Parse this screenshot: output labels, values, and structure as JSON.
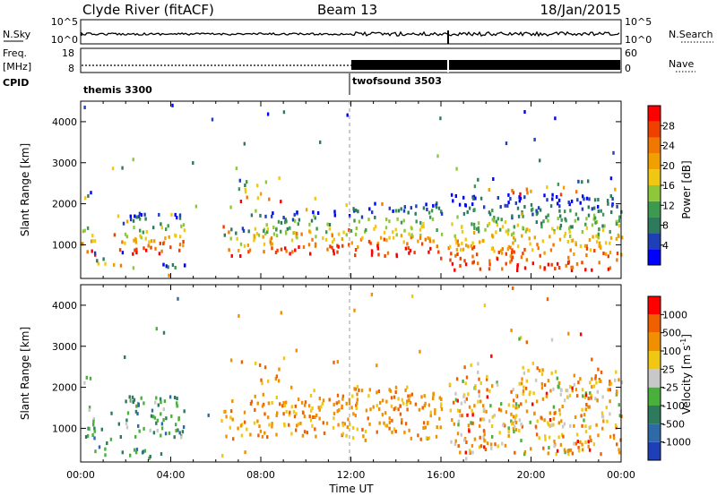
{
  "header": {
    "station": "Clyde River (fitACF)",
    "beam": "Beam 13",
    "date": "18/Jan/2015"
  },
  "strips": {
    "nsky_label": "N.Sky",
    "nsearch_label": "N.Search",
    "nsky_ticks": [
      "10^5",
      "10^0"
    ],
    "nsearch_ticks": [
      "10^5",
      "10^0"
    ],
    "freq_label": "Freq.",
    "freq_unit": "[MHz]",
    "freq_ticks": [
      "18",
      "8"
    ],
    "nave_label": "Nave",
    "nave_ticks": [
      "60",
      "0"
    ],
    "cpid_label": "CPID",
    "cpid_segments": [
      {
        "name": "themis 3300",
        "start_hour": 0
      },
      {
        "name": "twofsound 3503",
        "start_hour": 12.0
      }
    ]
  },
  "chart_data": [
    {
      "type": "heatmap",
      "panel": "power",
      "ylabel": "Slant Range [km]",
      "xlabel": "",
      "x_range_hours": [
        0,
        24
      ],
      "y_range_km": [
        180,
        4500
      ],
      "x_ticks": [
        "00:00",
        "04:00",
        "08:00",
        "12:00",
        "16:00",
        "20:00",
        "00:00"
      ],
      "y_ticks": [
        1000,
        2000,
        3000,
        4000
      ],
      "colorbar": {
        "label": "Power [dB]",
        "ticks": [
          28,
          24,
          20,
          16,
          12,
          8,
          4
        ],
        "colors": [
          "#0000ff",
          "#1f3fb8",
          "#2e7a5c",
          "#3c9a50",
          "#8ec83a",
          "#f0c814",
          "#f0a000",
          "#f07800",
          "#f04000",
          "#ff0000"
        ]
      }
    },
    {
      "type": "heatmap",
      "panel": "velocity",
      "ylabel": "Slant Range [km]",
      "xlabel": "Time UT",
      "x_range_hours": [
        0,
        24
      ],
      "y_range_km": [
        180,
        4500
      ],
      "x_ticks": [
        "00:00",
        "04:00",
        "08:00",
        "12:00",
        "16:00",
        "20:00",
        "00:00"
      ],
      "y_ticks": [
        1000,
        2000,
        3000,
        4000
      ],
      "colorbar": {
        "label": "Velocity [m s^-1]",
        "ticks": [
          "1000",
          "500",
          "100",
          "25",
          "-25",
          "-100",
          "-500",
          "-1000"
        ],
        "colors": [
          "#1f3fb8",
          "#2e6aa8",
          "#2e7a5c",
          "#4ab03c",
          "#c8c8c8",
          "#f0c814",
          "#f09000",
          "#f06000",
          "#ff0000"
        ]
      }
    }
  ]
}
